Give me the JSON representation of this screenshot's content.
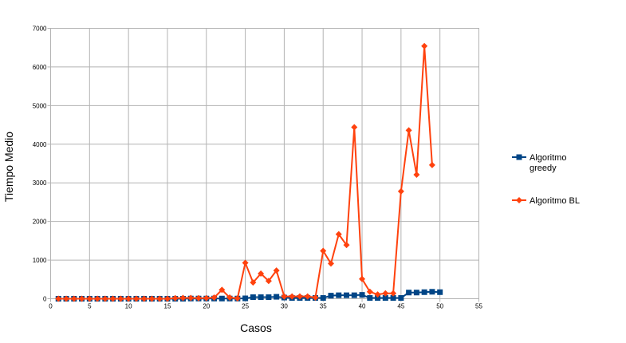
{
  "chart_data": {
    "type": "line",
    "xlabel": "Casos",
    "ylabel": "Tiempo Medio",
    "xlim": [
      0,
      55
    ],
    "ylim": [
      0,
      7000
    ],
    "x_ticks": [
      0,
      5,
      10,
      15,
      20,
      25,
      30,
      35,
      40,
      45,
      50,
      55
    ],
    "y_ticks": [
      0,
      1000,
      2000,
      3000,
      4000,
      5000,
      6000,
      7000
    ],
    "grid": true,
    "legend_position": "right",
    "x": [
      1,
      2,
      3,
      4,
      5,
      6,
      7,
      8,
      9,
      10,
      11,
      12,
      13,
      14,
      15,
      16,
      17,
      18,
      19,
      20,
      21,
      22,
      23,
      24,
      25,
      26,
      27,
      28,
      29,
      30,
      31,
      32,
      33,
      34,
      35,
      36,
      37,
      38,
      39,
      40,
      41,
      42,
      43,
      44,
      45,
      46,
      47,
      48,
      49,
      50
    ],
    "series": [
      {
        "name_lines": [
          "Algoritmo",
          "greedy"
        ],
        "color": "#004586",
        "marker": "square",
        "values": [
          0,
          0,
          0,
          0,
          0,
          0,
          0,
          0,
          0,
          0,
          0,
          0,
          0,
          0,
          0,
          0,
          0,
          5,
          5,
          5,
          5,
          5,
          5,
          5,
          10,
          40,
          40,
          40,
          50,
          30,
          20,
          20,
          20,
          20,
          20,
          80,
          90,
          90,
          90,
          100,
          20,
          20,
          20,
          20,
          20,
          160,
          160,
          170,
          180,
          170
        ]
      },
      {
        "name_lines": [
          "Algoritmo BL"
        ],
        "color": "#ff420e",
        "marker": "diamond",
        "values": [
          0,
          0,
          0,
          0,
          0,
          0,
          0,
          0,
          0,
          0,
          0,
          0,
          0,
          0,
          0,
          15,
          20,
          20,
          15,
          15,
          30,
          230,
          30,
          10,
          930,
          420,
          650,
          460,
          730,
          60,
          60,
          60,
          60,
          30,
          1240,
          910,
          1670,
          1390,
          4440,
          510,
          180,
          110,
          140,
          140,
          2780,
          4360,
          3210,
          6540,
          3460,
          null
        ]
      }
    ]
  }
}
